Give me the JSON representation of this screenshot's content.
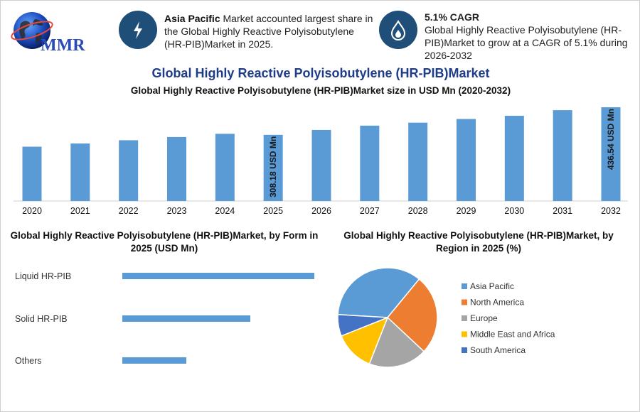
{
  "logo": {
    "text": "MMR",
    "icon": "globe-icon"
  },
  "card1": {
    "icon": "lightning-icon",
    "highlight": "Asia Pacific",
    "text": " Market accounted largest share in the Global Highly Reactive Polyisobutylene (HR-PIB)Market in 2025."
  },
  "card2": {
    "icon": "flame-drop-icon",
    "heading": "5.1% CAGR",
    "text": "Global Highly Reactive Polyisobutylene (HR-PIB)Market to grow at a CAGR of 5.1% during 2026-2032"
  },
  "title": "Global Highly Reactive Polyisobutylene (HR-PIB)Market",
  "chart_data": [
    {
      "type": "bar",
      "title": "Global Highly Reactive Polyisobutylene (HR-PIB)Market size in USD Mn (2020-2032)",
      "categories": [
        "2020",
        "2021",
        "2022",
        "2023",
        "2024",
        "2025",
        "2026",
        "2027",
        "2028",
        "2029",
        "2030",
        "2031",
        "2032"
      ],
      "values": [
        253,
        268,
        283,
        298,
        313,
        308.18,
        331,
        351,
        365,
        382,
        397,
        423,
        436.54
      ],
      "data_labels": {
        "2025": "308.18 USD Mn",
        "2032": "436.54 USD Mn"
      },
      "ylim": [
        0,
        450
      ],
      "color": "#5b9bd5",
      "grid": false
    },
    {
      "type": "bar",
      "orientation": "horizontal",
      "title": "Global Highly Reactive Polyisobutylene (HR-PIB)Market, by Form in 2025 (USD Mn)",
      "categories": [
        "Liquid HR-PIB",
        "Solid HR-PIB",
        "Others"
      ],
      "values": [
        180,
        120,
        60
      ],
      "xlim": [
        0,
        180
      ],
      "color": "#5b9bd5"
    },
    {
      "type": "pie",
      "title": "Global Highly Reactive Polyisobutylene (HR-PIB)Market, by Region in 2025 (%)",
      "labels": [
        "Asia Pacific",
        "North America",
        "Europe",
        "Middle East and Africa",
        "South America"
      ],
      "values": [
        35,
        26,
        19,
        13,
        7
      ],
      "colors": [
        "#5b9bd5",
        "#ed7d31",
        "#a5a5a5",
        "#ffc000",
        "#4472c4"
      ],
      "legend": "right"
    }
  ]
}
